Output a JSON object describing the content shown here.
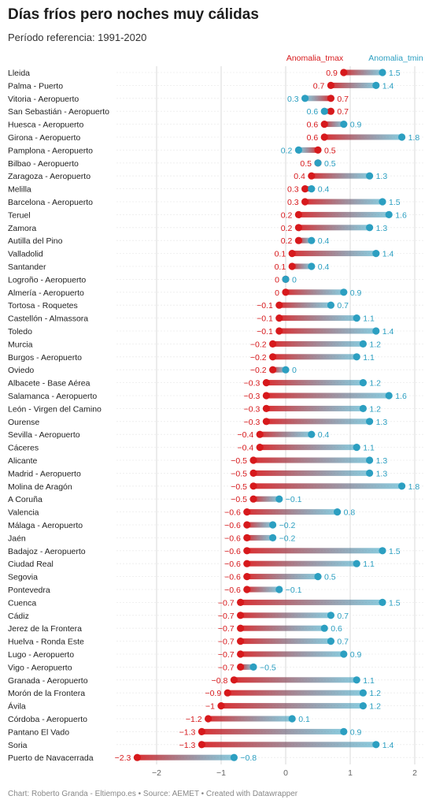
{
  "title": "Días fríos pero noches muy cálidas",
  "subtitle": "Período referencia: 1991-2020",
  "footer": "Chart: Roberto Granda - Eltiempo.es • Source: AEMET • Created with Datawrapper",
  "colors": {
    "tmax": "#d7191c",
    "tmin": "#2c9fc1",
    "grid": "#d9d9d9"
  },
  "chart_data": {
    "type": "dot-range",
    "legend": {
      "tmax": "Anomalia_tmax",
      "tmin": "Anomalia_tmin"
    },
    "x_ticks": [
      -2,
      -1,
      0,
      1,
      2
    ],
    "xlim": [
      -2.6,
      2.1
    ],
    "categories": [
      "Lleida",
      "Palma - Puerto",
      "Vitoria - Aeropuerto",
      "San Sebastián - Aeropuerto",
      "Huesca - Aeropuerto",
      "Girona - Aeropuerto",
      "Pamplona - Aeropuerto",
      "Bilbao - Aeropuerto",
      "Zaragoza - Aeropuerto",
      "Melilla",
      "Barcelona - Aeropuerto",
      "Teruel",
      "Zamora",
      "Autilla del Pino",
      "Valladolid",
      "Santander",
      "Logroño - Aeropuerto",
      "Almería - Aeropuerto",
      "Tortosa - Roquetes",
      "Castellón - Almassora",
      "Toledo",
      "Murcia",
      "Burgos - Aeropuerto",
      "Oviedo",
      "Albacete - Base Aérea",
      "Salamanca - Aeropuerto",
      "León - Virgen del Camino",
      "Ourense",
      "Sevilla - Aeropuerto",
      "Cáceres",
      "Alicante",
      "Madrid - Aeropuerto",
      "Molina de Aragón",
      "A Coruña",
      "Valencia",
      "Málaga - Aeropuerto",
      "Jaén",
      "Badajoz - Aeropuerto",
      "Ciudad Real",
      "Segovia",
      "Pontevedra",
      "Cuenca",
      "Cádiz",
      "Jerez de la Frontera",
      "Huelva - Ronda Este",
      "Lugo - Aeropuerto",
      "Vigo - Aeropuerto",
      "Granada - Aeropuerto",
      "Morón de la Frontera",
      "Ávila",
      "Córdoba - Aeropuerto",
      "Pantano El Vado",
      "Soria",
      "Puerto de Navacerrada"
    ],
    "series": [
      {
        "name": "Anomalia_tmax",
        "values": [
          0.9,
          0.7,
          0.7,
          0.7,
          0.6,
          0.6,
          0.5,
          0.5,
          0.4,
          0.3,
          0.3,
          0.2,
          0.2,
          0.2,
          0.1,
          0.1,
          0,
          0,
          -0.1,
          -0.1,
          -0.1,
          -0.2,
          -0.2,
          -0.2,
          -0.3,
          -0.3,
          -0.3,
          -0.3,
          -0.4,
          -0.4,
          -0.5,
          -0.5,
          -0.5,
          -0.5,
          -0.6,
          -0.6,
          -0.6,
          -0.6,
          -0.6,
          -0.6,
          -0.6,
          -0.7,
          -0.7,
          -0.7,
          -0.7,
          -0.7,
          -0.7,
          -0.8,
          -0.9,
          -1,
          -1.2,
          -1.3,
          -1.3,
          -2.3
        ]
      },
      {
        "name": "Anomalia_tmin",
        "values": [
          1.5,
          1.4,
          0.3,
          0.6,
          0.9,
          1.8,
          0.2,
          0.5,
          1.3,
          0.4,
          1.5,
          1.6,
          1.3,
          0.4,
          1.4,
          0.4,
          0,
          0.9,
          0.7,
          1.1,
          1.4,
          1.2,
          1.1,
          0,
          1.2,
          1.6,
          1.2,
          1.3,
          0.4,
          1.1,
          1.3,
          1.3,
          1.8,
          -0.1,
          0.8,
          -0.2,
          -0.2,
          1.5,
          1.1,
          0.5,
          -0.1,
          1.5,
          0.7,
          0.6,
          0.7,
          0.9,
          -0.5,
          1.1,
          1.2,
          1.2,
          0.1,
          0.9,
          1.4,
          -0.8
        ]
      }
    ]
  }
}
